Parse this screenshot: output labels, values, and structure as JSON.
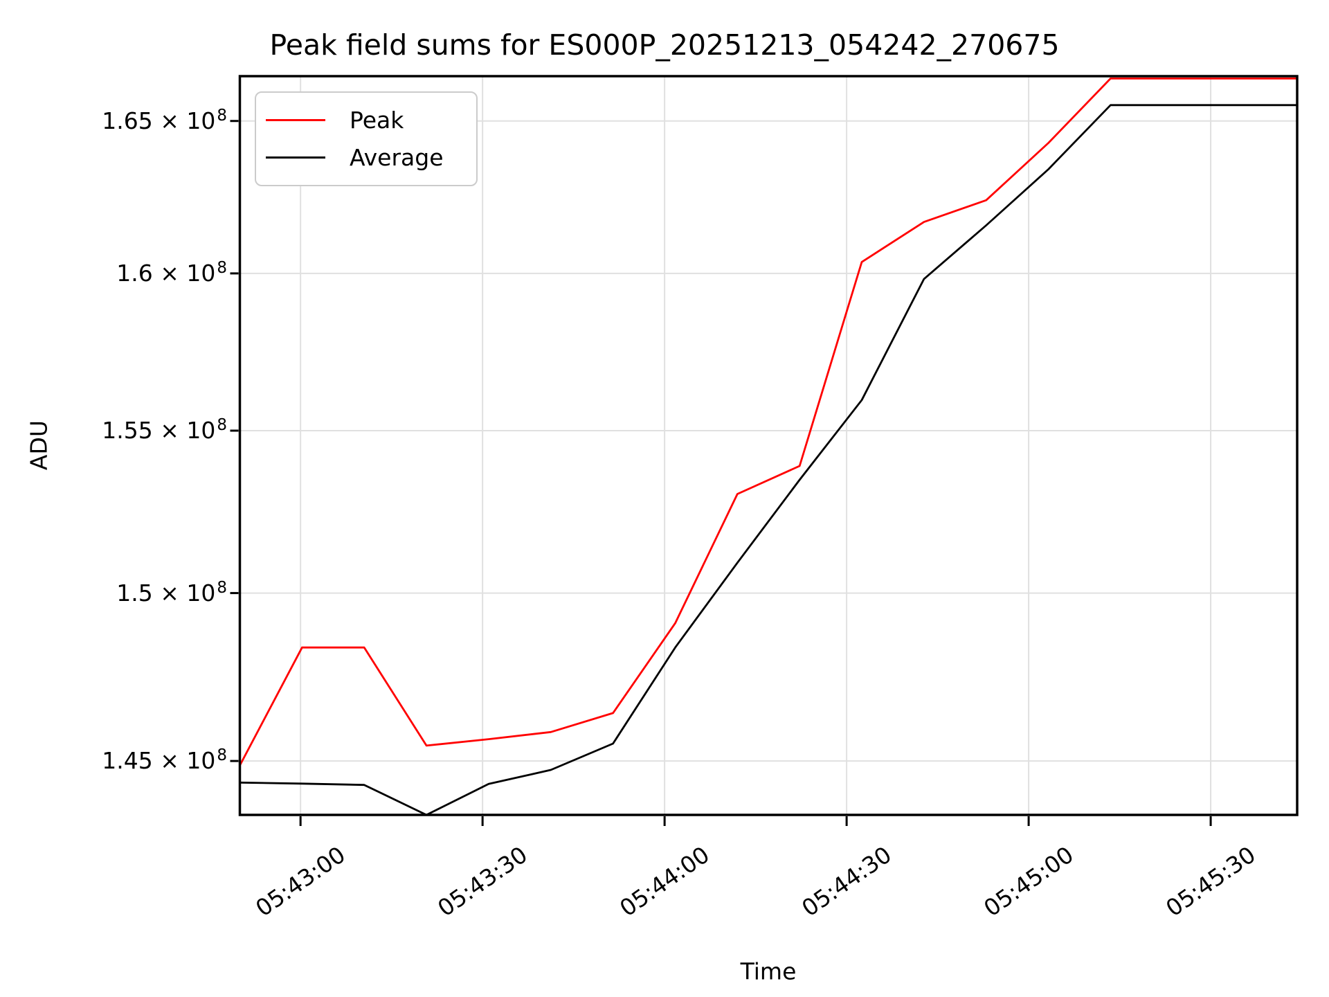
{
  "title": "Peak field sums for ES000P_20251213_054242_270675",
  "axes": {
    "x_label": "Time",
    "y_label": "ADU",
    "x_ticks": [
      {
        "label": "05:43:00",
        "t": 10
      },
      {
        "label": "05:43:30",
        "t": 40
      },
      {
        "label": "05:44:00",
        "t": 70
      },
      {
        "label": "05:44:30",
        "t": 100
      },
      {
        "label": "05:45:00",
        "t": 130
      },
      {
        "label": "05:45:30",
        "t": 160
      }
    ],
    "y_ticks": [
      {
        "base": "1.45 × 10",
        "exp": "8",
        "value": 145000000
      },
      {
        "base": "1.5 × 10",
        "exp": "8",
        "value": 150000000
      },
      {
        "base": "1.55 × 10",
        "exp": "8",
        "value": 155000000
      },
      {
        "base": "1.6 × 10",
        "exp": "8",
        "value": 160000000
      },
      {
        "base": "1.65 × 10",
        "exp": "8",
        "value": 165000000
      }
    ],
    "grid_color": "#e0e0e0",
    "spine_color": "#000000"
  },
  "chart_data": {
    "type": "line",
    "title": "Peak field sums for ES000P_20251213_054242_270675",
    "xlabel": "Time",
    "ylabel": "ADU",
    "yscale": "log",
    "grid": true,
    "legend_position": "upper left",
    "xlim_seconds": [
      0,
      174.25
    ],
    "ylim": [
      143430000,
      166500000
    ],
    "x_seconds": [
      0,
      10.25,
      20.5,
      30.75,
      41,
      51.25,
      61.5,
      71.75,
      82,
      92.25,
      102.5,
      112.75,
      123,
      133.25,
      143.5,
      153.75,
      164,
      174.25
    ],
    "series": [
      {
        "name": "Peak",
        "color": "#ff0000",
        "values": [
          144870000,
          148360000,
          148360000,
          145450000,
          145640000,
          145850000,
          146410000,
          149090000,
          153030000,
          153900000,
          160370000,
          161670000,
          162380000,
          164270000,
          166420000,
          166420000,
          166420000,
          166420000
        ]
      },
      {
        "name": "Average",
        "color": "#000000",
        "values": [
          144370000,
          144340000,
          144300000,
          143430000,
          144330000,
          144740000,
          145510000,
          148360000,
          150920000,
          153470000,
          155960000,
          159820000,
          161560000,
          163400000,
          165530000,
          165530000,
          165530000,
          165530000
        ]
      }
    ]
  }
}
